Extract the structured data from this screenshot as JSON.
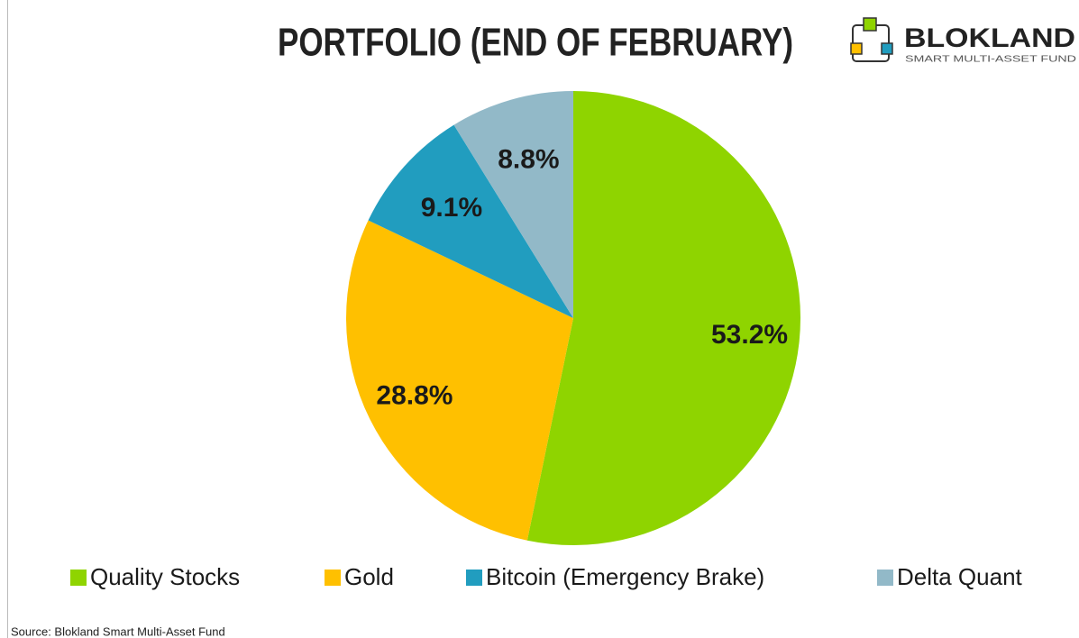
{
  "chart_data": {
    "type": "pie",
    "title": "PORTFOLIO (END OF FEBRUARY)",
    "brand": {
      "name": "BLOKLAND",
      "tagline": "SMART MULTI-ASSET FUND"
    },
    "categories": [
      "Quality Stocks",
      "Gold",
      "Bitcoin (Emergency Brake)",
      "Delta Quant"
    ],
    "values": [
      53.2,
      28.8,
      9.1,
      8.8
    ],
    "value_labels": [
      "53.2%",
      "28.8%",
      "9.1%",
      "8.8%"
    ],
    "colors": [
      "#8fd400",
      "#ffc000",
      "#219dbf",
      "#92b9c8"
    ],
    "legend": "bottom",
    "source": "Source: Blokland Smart Multi-Asset Fund"
  }
}
